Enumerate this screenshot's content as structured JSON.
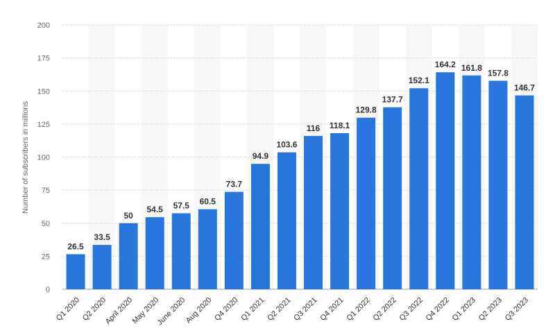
{
  "chart_data": {
    "type": "bar",
    "ylabel": "Number of subscribers in millions",
    "ylim": [
      0,
      200
    ],
    "yticks": [
      0,
      25,
      50,
      75,
      100,
      125,
      150,
      175,
      200
    ],
    "categories": [
      "Q1 2020",
      "Q2 2020",
      "April 2020",
      "May 2020",
      "June 2020",
      "Aug 2020",
      "Q4 2020",
      "Q1 2021",
      "Q2 2021",
      "Q3 2021",
      "Q4 2021",
      "Q1 2022",
      "Q2 2022",
      "Q3 2022",
      "Q4 2022",
      "Q1 2023",
      "Q2 2023",
      "Q3 2023"
    ],
    "values": [
      26.5,
      33.5,
      50,
      54.5,
      57.5,
      60.5,
      73.7,
      94.9,
      103.6,
      116,
      118.1,
      129.8,
      137.7,
      152.1,
      164.2,
      161.8,
      157.8,
      146.7
    ],
    "data_labels": [
      "26.5",
      "33.5",
      "50",
      "54.5",
      "57.5",
      "60.5",
      "73.7",
      "94.9",
      "103.6",
      "116",
      "118.1",
      "129.8",
      "137.7",
      "152.1",
      "164.2",
      "161.8",
      "157.8",
      "146.7"
    ],
    "grid": true,
    "legend": "none",
    "colors": {
      "bar": "#2876dd",
      "band": "#f7f7f7",
      "grid": "#d9d9d9"
    }
  }
}
